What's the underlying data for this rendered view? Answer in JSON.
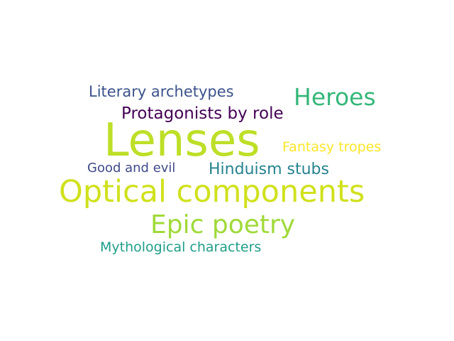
{
  "words": [
    {
      "text": "Literary archetypes",
      "color": "#3b528b"
    },
    {
      "text": "Heroes",
      "color": "#35b779"
    },
    {
      "text": "Protagonists by role",
      "color": "#440154"
    },
    {
      "text": "Lenses",
      "color": "#bddf26"
    },
    {
      "text": "Fantasy tropes",
      "color": "#fde725"
    },
    {
      "text": "Good and evil",
      "color": "#3e4a89"
    },
    {
      "text": "Hinduism stubs",
      "color": "#26828e"
    },
    {
      "text": "Optical components",
      "color": "#d0e11c"
    },
    {
      "text": "Epic poetry",
      "color": "#a0da39"
    },
    {
      "text": "Mythological characters",
      "color": "#1f9e89"
    }
  ]
}
